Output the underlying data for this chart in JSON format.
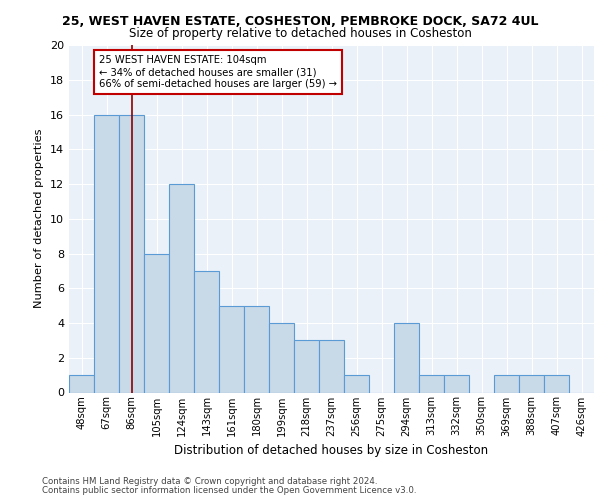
{
  "title1": "25, WEST HAVEN ESTATE, COSHESTON, PEMBROKE DOCK, SA72 4UL",
  "title2": "Size of property relative to detached houses in Cosheston",
  "xlabel": "Distribution of detached houses by size in Cosheston",
  "ylabel": "Number of detached properties",
  "bin_labels": [
    "48sqm",
    "67sqm",
    "86sqm",
    "105sqm",
    "124sqm",
    "143sqm",
    "161sqm",
    "180sqm",
    "199sqm",
    "218sqm",
    "237sqm",
    "256sqm",
    "275sqm",
    "294sqm",
    "313sqm",
    "332sqm",
    "350sqm",
    "369sqm",
    "388sqm",
    "407sqm",
    "426sqm"
  ],
  "bar_heights": [
    1,
    16,
    16,
    8,
    12,
    7,
    5,
    5,
    4,
    3,
    3,
    1,
    0,
    4,
    1,
    1,
    0,
    1,
    1,
    1,
    0
  ],
  "bar_color": "#c8d9e8",
  "bar_edge_color": "#5b9bd5",
  "vline_x": 2.5,
  "vline_color": "#8b0000",
  "annotation_text": "25 WEST HAVEN ESTATE: 104sqm\n← 34% of detached houses are smaller (31)\n66% of semi-detached houses are larger (59) →",
  "annotation_box_color": "white",
  "annotation_box_edge": "#c00000",
  "ylim": [
    0,
    20
  ],
  "yticks": [
    0,
    2,
    4,
    6,
    8,
    10,
    12,
    14,
    16,
    18,
    20
  ],
  "footer1": "Contains HM Land Registry data © Crown copyright and database right 2024.",
  "footer2": "Contains public sector information licensed under the Open Government Licence v3.0.",
  "background_color": "#eaf1f8",
  "plot_bg_color": "#eaf1f8"
}
